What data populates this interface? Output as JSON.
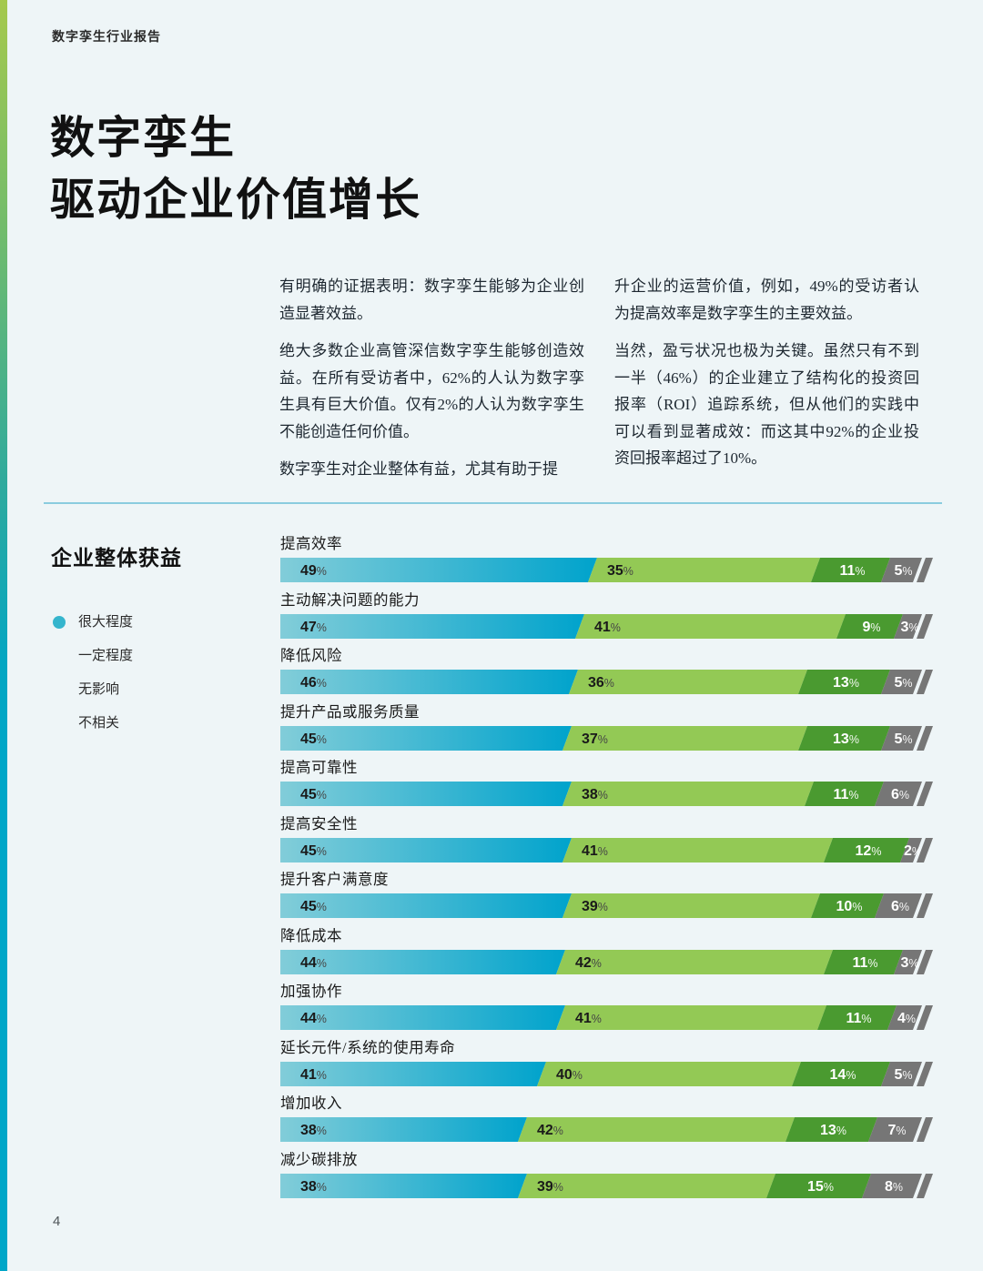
{
  "page": {
    "header": "数字孪生行业报告",
    "title_line1": "数字孪生",
    "title_line2": "驱动企业价值增长",
    "page_number": "4",
    "background_color": "#eef5f7",
    "accent_strip_colors": [
      "#a5c94d",
      "#00a6c8"
    ]
  },
  "intro": {
    "col_left": [
      "有明确的证据表明：数字孪生能够为企业创造显著效益。",
      "绝大多数企业高管深信数字孪生能够创造效益。在所有受访者中，62%的人认为数字孪生具有巨大价值。仅有2%的人认为数字孪生不能创造任何价值。",
      "数字孪生对企业整体有益，尤其有助于提"
    ],
    "col_right": [
      "升企业的运营价值，例如，49%的受访者认为提高效率是数字孪生的主要效益。",
      "当然，盈亏状况也极为关键。虽然只有不到一半（46%）的企业建立了结构化的投资回报率（ROI）追踪系统，但从他们的实践中可以看到显著成效：而这其中92%的企业投资回报率超过了10%。"
    ]
  },
  "benefits_section": {
    "title": "企业整体获益",
    "legend": [
      {
        "label": "很大程度",
        "dot": true,
        "dot_color": "#35b5cd"
      },
      {
        "label": "一定程度",
        "dot": false
      },
      {
        "label": "无影响",
        "dot": false
      },
      {
        "label": "不相关",
        "dot": false
      }
    ]
  },
  "chart_data": {
    "type": "bar",
    "orientation": "horizontal-stacked",
    "unit": "%",
    "categories": [
      "提高效率",
      "主动解决问题的能力",
      "降低风险",
      "提升产品或服务质量",
      "提高可靠性",
      "提高安全性",
      "提升客户满意度",
      "降低成本",
      "加强协作",
      "延长元件/系统的使用寿命",
      "增加收入",
      "减少碳排放"
    ],
    "series": [
      {
        "name": "很大程度",
        "color": "#00a3cc",
        "gradient_start": "#82cdd9",
        "gradient_end": "#00a3cc",
        "values": [
          49,
          47,
          46,
          45,
          45,
          45,
          45,
          44,
          44,
          41,
          38,
          38
        ]
      },
      {
        "name": "一定程度",
        "color": "#93c955",
        "values": [
          35,
          41,
          36,
          37,
          38,
          41,
          39,
          42,
          41,
          40,
          42,
          39
        ]
      },
      {
        "name": "无影响",
        "color": "#4a9a30",
        "values": [
          11,
          9,
          13,
          13,
          11,
          12,
          10,
          11,
          11,
          14,
          13,
          15
        ]
      },
      {
        "name": "不相关",
        "color": "#767676",
        "values": [
          5,
          3,
          5,
          5,
          6,
          2,
          6,
          3,
          4,
          5,
          7,
          8
        ]
      }
    ],
    "xlim": [
      0,
      100
    ],
    "value_labels": "inside-segments",
    "legend_position": "left"
  }
}
